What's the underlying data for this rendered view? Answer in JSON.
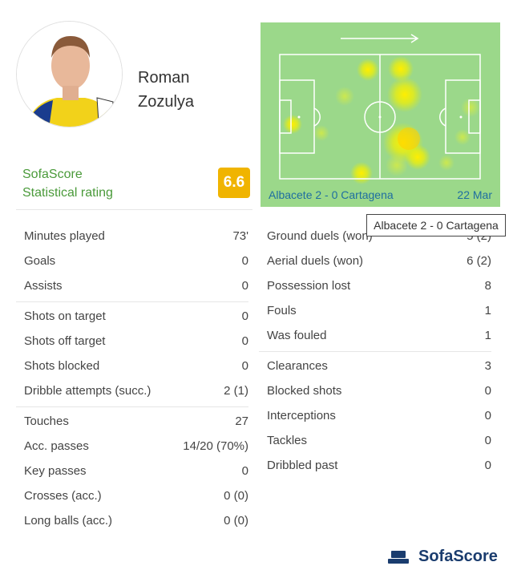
{
  "player": {
    "first_name": "Roman",
    "last_name": "Zozulya"
  },
  "rating": {
    "label_line1": "SofaScore",
    "label_line2": "Statistical rating",
    "value": "6.6",
    "color": "#f0b400"
  },
  "heatmap": {
    "match": "Albacete 2 - 0 Cartagena",
    "date": "22 Mar",
    "direction_icon": "arrow-right-icon"
  },
  "tooltip": "Albacete 2 - 0 Cartagena",
  "left_stats": [
    [
      {
        "label": "Minutes played",
        "value": "73'"
      },
      {
        "label": "Goals",
        "value": "0"
      },
      {
        "label": "Assists",
        "value": "0"
      }
    ],
    [
      {
        "label": "Shots on target",
        "value": "0"
      },
      {
        "label": "Shots off target",
        "value": "0"
      },
      {
        "label": "Shots blocked",
        "value": "0"
      },
      {
        "label": "Dribble attempts (succ.)",
        "value": "2 (1)"
      }
    ],
    [
      {
        "label": "Touches",
        "value": "27"
      },
      {
        "label": "Acc. passes",
        "value": "14/20 (70%)"
      },
      {
        "label": "Key passes",
        "value": "0"
      },
      {
        "label": "Crosses (acc.)",
        "value": "0 (0)"
      },
      {
        "label": "Long balls (acc.)",
        "value": "0 (0)"
      }
    ]
  ],
  "right_stats": [
    [
      {
        "label": "Ground duels (won)",
        "value": "5 (2)"
      },
      {
        "label": "Aerial duels (won)",
        "value": "6 (2)"
      },
      {
        "label": "Possession lost",
        "value": "8"
      },
      {
        "label": "Fouls",
        "value": "1"
      },
      {
        "label": "Was fouled",
        "value": "1"
      }
    ],
    [
      {
        "label": "Clearances",
        "value": "3"
      },
      {
        "label": "Blocked shots",
        "value": "0"
      },
      {
        "label": "Interceptions",
        "value": "0"
      },
      {
        "label": "Tackles",
        "value": "0"
      },
      {
        "label": "Dribbled past",
        "value": "0"
      }
    ]
  ],
  "brand": {
    "name": "SofaScore",
    "color": "#1a3c6e"
  }
}
